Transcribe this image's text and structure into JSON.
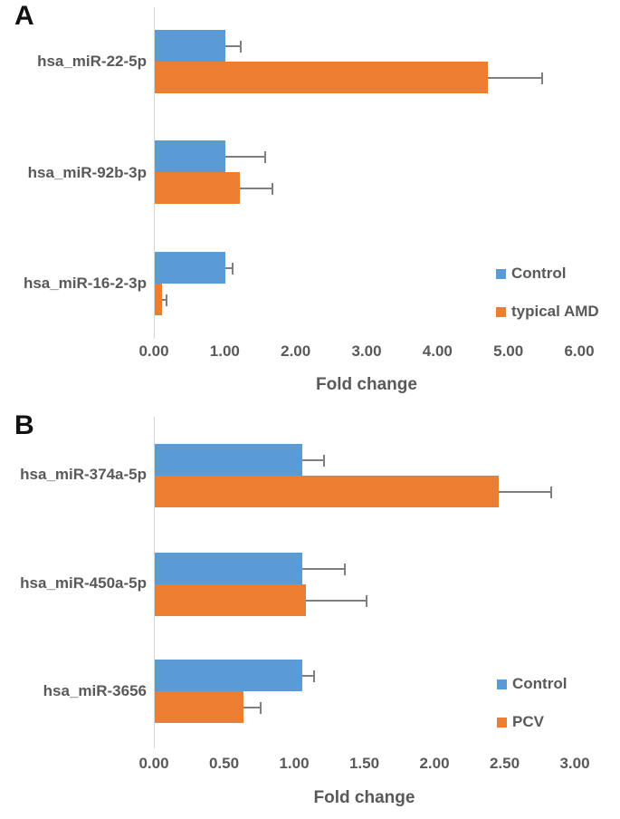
{
  "figure": {
    "background": "#FFFFFF",
    "panel_letters": [
      "A",
      "B"
    ],
    "colors": {
      "control_blue": "#5B9BD5",
      "case_orange": "#ED7D31",
      "axis_text_gray": "#595959",
      "error_bar_gray": "#7F7F7F",
      "axis_line_gray": "#D6D6D6",
      "panel_letter_black": "#111111"
    }
  },
  "chart_data": [
    {
      "type": "bar",
      "orientation": "horizontal",
      "panel_letter": "A",
      "title": "",
      "xlabel": "Fold change",
      "ylabel": "",
      "xlim": [
        0,
        6
      ],
      "xticks": [
        "0.00",
        "1.00",
        "2.00",
        "3.00",
        "4.00",
        "5.00",
        "6.00"
      ],
      "grid": false,
      "legend_position": "inside-lower-right",
      "categories": [
        "hsa_miR-22-5p",
        "hsa_miR-92b-3p",
        "hsa_miR-16-2-3p"
      ],
      "series": [
        {
          "name": "Control",
          "color": "#5B9BD5",
          "values": [
            1.0,
            1.0,
            1.0
          ],
          "error_plus": [
            0.2,
            0.55,
            0.08
          ]
        },
        {
          "name": "typical AMD",
          "color": "#ED7D31",
          "values": [
            4.7,
            1.2,
            0.1
          ],
          "error_plus": [
            0.75,
            0.45,
            0.05
          ]
        }
      ]
    },
    {
      "type": "bar",
      "orientation": "horizontal",
      "panel_letter": "B",
      "title": "",
      "xlabel": "Fold change",
      "ylabel": "",
      "xlim": [
        0,
        3
      ],
      "xticks": [
        "0.00",
        "0.50",
        "1.00",
        "1.50",
        "2.00",
        "2.50",
        "3.00"
      ],
      "grid": false,
      "legend_position": "inside-lower-right",
      "categories": [
        "hsa_miR-374a-5p",
        "hsa_miR-450a-5p",
        "hsa_miR-3656"
      ],
      "series": [
        {
          "name": "Control",
          "color": "#5B9BD5",
          "values": [
            1.05,
            1.05,
            1.05
          ],
          "error_plus": [
            0.15,
            0.3,
            0.08
          ]
        },
        {
          "name": "PCV",
          "color": "#ED7D31",
          "values": [
            2.45,
            1.08,
            0.63
          ],
          "error_plus": [
            0.37,
            0.42,
            0.12
          ]
        }
      ]
    }
  ]
}
